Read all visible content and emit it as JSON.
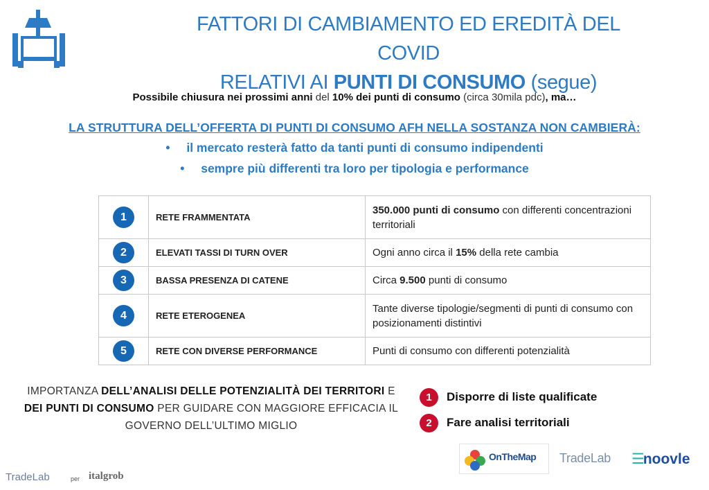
{
  "title": {
    "line1": "FATTORI DI CAMBIAMENTO ED EREDITÀ DEL COVID",
    "line2_prefix": "RELATIVI AI ",
    "line2_bold": "PUNTI DI CONSUMO",
    "line2_suffix": " (segue)"
  },
  "intro": {
    "part1": "Possibile chiusura nei prossimi anni ",
    "part2": "del ",
    "part3": "10% dei punti di consumo ",
    "part4": "(circa 30mila pdc)",
    "part5": ", ma…"
  },
  "headline": "LA STRUTTURA DELL’OFFERTA DI PUNTI DI CONSUMO AFH NELLA SOSTANZA NON CAMBIERÀ:",
  "bullets": [
    "il mercato resterà fatto da tanti punti di consumo indipendenti",
    "sempre più differenti tra loro per tipologia e performance"
  ],
  "bullet_symbol": "•",
  "rows": [
    {
      "num": "1",
      "label": "RETE FRAMMENTATA",
      "bold": "350.000 punti di consumo",
      "rest": " con differenti concentrazioni territoriali",
      "pre": ""
    },
    {
      "num": "2",
      "label": "ELEVATI TASSI DI TURN OVER",
      "pre": "Ogni anno circa il ",
      "bold": "15%",
      "rest": " della rete cambia"
    },
    {
      "num": "3",
      "label": "BASSA PRESENZA DI CATENE",
      "pre": "Circa ",
      "bold": "9.500",
      "rest": " punti di consumo"
    },
    {
      "num": "4",
      "label": "RETE ETEROGENEA",
      "pre": "Tante diverse tipologie/segmenti di punti di consumo con posizionamenti distintivi",
      "bold": "",
      "rest": ""
    },
    {
      "num": "5",
      "label": "RETE CON DIVERSE PERFORMANCE",
      "pre": "Punti di consumo con differenti potenzialità",
      "bold": "",
      "rest": ""
    }
  ],
  "importanza": {
    "p1": "IMPORTANZA ",
    "b1": "DELL’ANALISI DELLE POTENZIALITÀ DEI TERRITORI",
    "p2": " E ",
    "b2": "DEI PUNTI DI CONSUMO",
    "p3": " PER GUIDARE CON MAGGIORE EFFICACIA IL GOVERNO DELL’ULTIMO MIGLIO"
  },
  "actions": [
    {
      "num": "1",
      "text": "Disporre di liste qualificate"
    },
    {
      "num": "2",
      "text": "Fare analisi territoriali"
    }
  ],
  "logos": {
    "onthemap": "OnTheMap",
    "tradelab_right": "TradeLab",
    "noovle_bars": "☰",
    "noovle": "noovle",
    "tradelab_left": "TradeLab",
    "per": "per",
    "italgrob": "italgrob"
  },
  "colors": {
    "accent": "#2d7bc4",
    "circle": "#1668b5",
    "action_circle": "#c8102e"
  }
}
